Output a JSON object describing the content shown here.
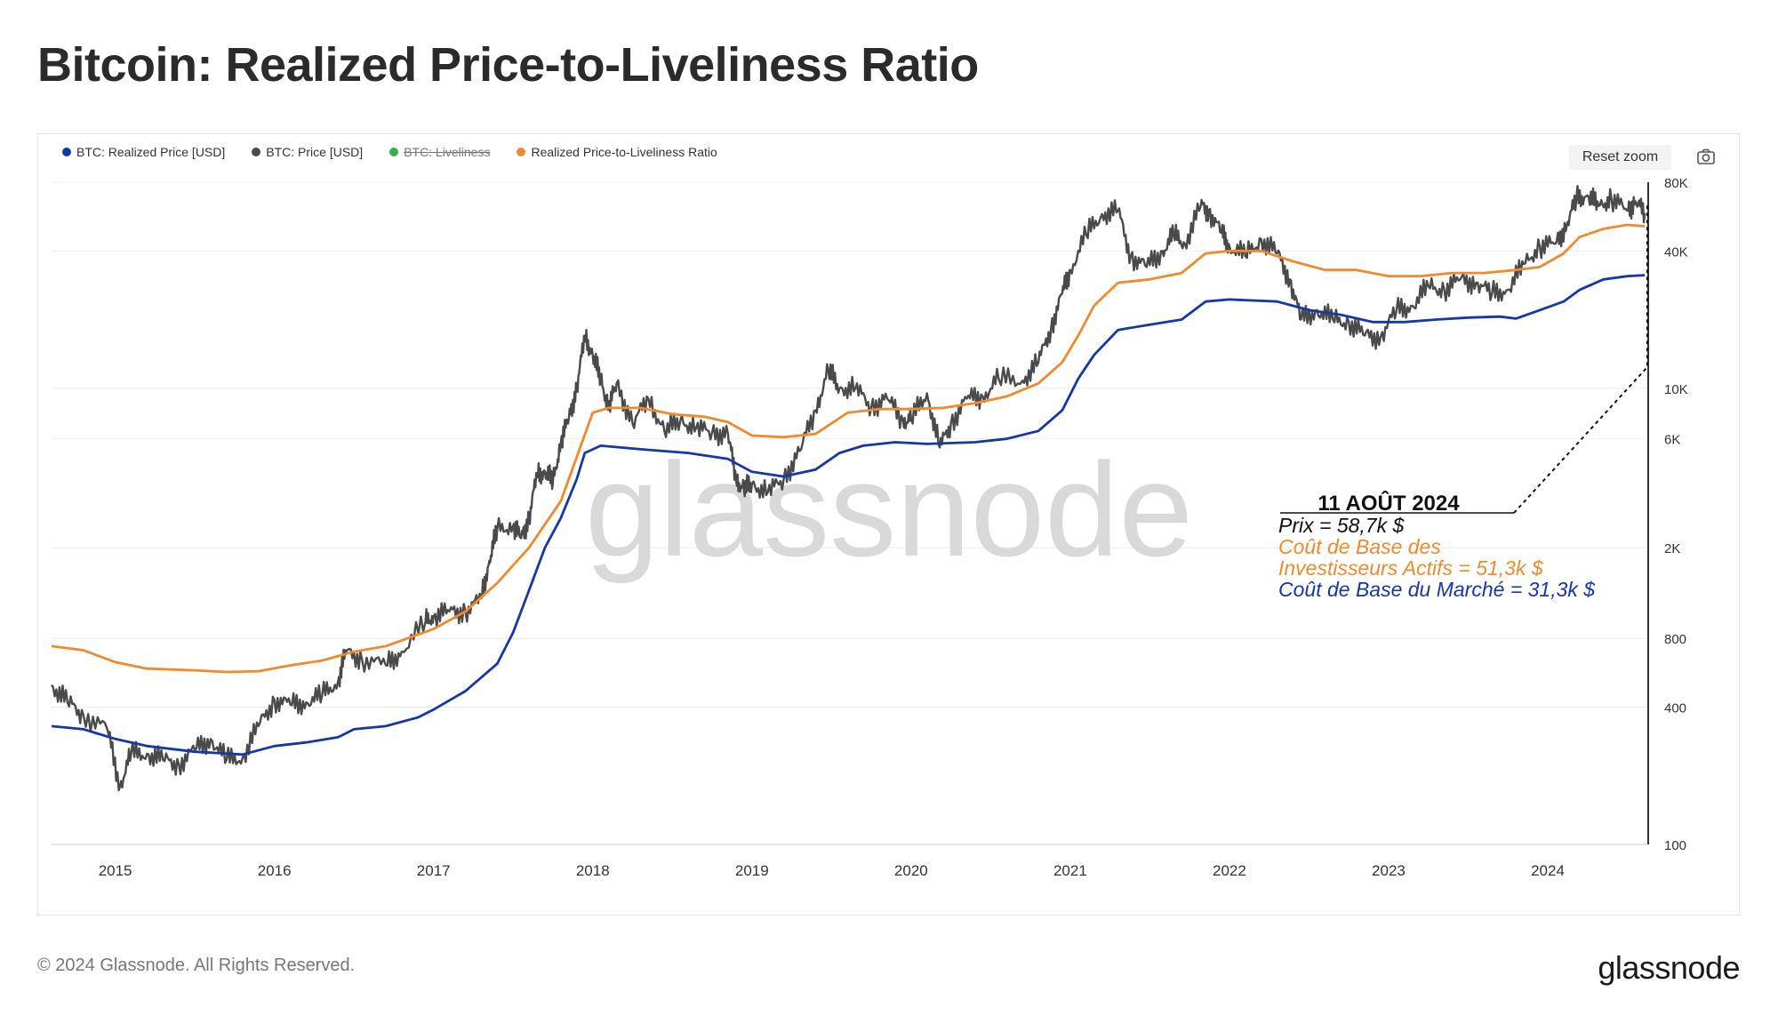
{
  "page": {
    "title": "Bitcoin: Realized Price-to-Liveliness Ratio",
    "copyright": "© 2024 Glassnode. All Rights Reserved.",
    "logo": "glassnode",
    "watermark": "glassnode",
    "reset_zoom_label": "Reset zoom",
    "camera_icon": "camera-icon"
  },
  "legend": [
    {
      "label": "BTC: Realized Price [USD]",
      "color": "#1537a8",
      "enabled": true
    },
    {
      "label": "BTC: Price [USD]",
      "color": "#4a4a4a",
      "enabled": true
    },
    {
      "label": "BTC: Liveliness",
      "color": "#2fb344",
      "enabled": false
    },
    {
      "label": "Realized Price-to-Liveliness Ratio",
      "color": "#f08a2c",
      "enabled": true
    }
  ],
  "annotation": {
    "date": "11 AOÛT 2024",
    "price": "Prix = 58,7k $",
    "active_line1": "Coût de Base des",
    "active_line2": "Investisseurs Actifs = 51,3k $",
    "market": "Coût de Base du Marché = 31,3k  $"
  },
  "chart_data": {
    "type": "line",
    "title": "Bitcoin: Realized Price-to-Liveliness Ratio",
    "yscale": "log",
    "ylim": [
      100,
      80000
    ],
    "xlim": [
      2014.6,
      2024.62
    ],
    "yticks": [
      100,
      400,
      800,
      2000,
      6000,
      10000,
      40000,
      80000
    ],
    "ytick_labels": [
      "100",
      "400",
      "800",
      "2K",
      "6K",
      "10K",
      "40K",
      "80K"
    ],
    "xticks": [
      2015,
      2016,
      2017,
      2018,
      2019,
      2020,
      2021,
      2022,
      2023,
      2024
    ],
    "xtick_labels": [
      "2015",
      "2016",
      "2017",
      "2018",
      "2019",
      "2020",
      "2021",
      "2022",
      "2023",
      "2024"
    ],
    "series": [
      {
        "name": "BTC: Price [USD]",
        "color": "#4a4a4a",
        "points": [
          [
            2014.6,
            500
          ],
          [
            2014.7,
            420
          ],
          [
            2014.8,
            370
          ],
          [
            2014.95,
            320
          ],
          [
            2015.03,
            180
          ],
          [
            2015.1,
            250
          ],
          [
            2015.2,
            250
          ],
          [
            2015.3,
            235
          ],
          [
            2015.4,
            225
          ],
          [
            2015.5,
            260
          ],
          [
            2015.6,
            290
          ],
          [
            2015.7,
            235
          ],
          [
            2015.8,
            240
          ],
          [
            2015.9,
            330
          ],
          [
            2016.0,
            430
          ],
          [
            2016.1,
            410
          ],
          [
            2016.2,
            420
          ],
          [
            2016.3,
            450
          ],
          [
            2016.4,
            520
          ],
          [
            2016.45,
            700
          ],
          [
            2016.55,
            650
          ],
          [
            2016.7,
            610
          ],
          [
            2016.8,
            700
          ],
          [
            2016.95,
            950
          ],
          [
            2017.0,
            1000
          ],
          [
            2017.1,
            1050
          ],
          [
            2017.2,
            1050
          ],
          [
            2017.3,
            1200
          ],
          [
            2017.35,
            1750
          ],
          [
            2017.4,
            2400
          ],
          [
            2017.5,
            2500
          ],
          [
            2017.55,
            2200
          ],
          [
            2017.6,
            2700
          ],
          [
            2017.65,
            4200
          ],
          [
            2017.7,
            4300
          ],
          [
            2017.75,
            3900
          ],
          [
            2017.8,
            5800
          ],
          [
            2017.85,
            7400
          ],
          [
            2017.9,
            10000
          ],
          [
            2017.95,
            17000
          ],
          [
            2018.0,
            14000
          ],
          [
            2018.05,
            11000
          ],
          [
            2018.1,
            8200
          ],
          [
            2018.15,
            10500
          ],
          [
            2018.25,
            7000
          ],
          [
            2018.35,
            9000
          ],
          [
            2018.45,
            6500
          ],
          [
            2018.55,
            7200
          ],
          [
            2018.65,
            6700
          ],
          [
            2018.75,
            6400
          ],
          [
            2018.85,
            6300
          ],
          [
            2018.9,
            4000
          ],
          [
            2018.95,
            3600
          ],
          [
            2019.0,
            3800
          ],
          [
            2019.1,
            3500
          ],
          [
            2019.2,
            4000
          ],
          [
            2019.3,
            5300
          ],
          [
            2019.4,
            8000
          ],
          [
            2019.48,
            12000
          ],
          [
            2019.55,
            10000
          ],
          [
            2019.65,
            10000
          ],
          [
            2019.75,
            8300
          ],
          [
            2019.85,
            9000
          ],
          [
            2019.95,
            7200
          ],
          [
            2020.0,
            7300
          ],
          [
            2020.1,
            9500
          ],
          [
            2020.18,
            5500
          ],
          [
            2020.25,
            7000
          ],
          [
            2020.35,
            9000
          ],
          [
            2020.45,
            9200
          ],
          [
            2020.55,
            11000
          ],
          [
            2020.7,
            10800
          ],
          [
            2020.8,
            13000
          ],
          [
            2020.88,
            18500
          ],
          [
            2020.95,
            26000
          ],
          [
            2021.0,
            33000
          ],
          [
            2021.1,
            47000
          ],
          [
            2021.2,
            58000
          ],
          [
            2021.3,
            60000
          ],
          [
            2021.38,
            38000
          ],
          [
            2021.48,
            34000
          ],
          [
            2021.58,
            40000
          ],
          [
            2021.65,
            47000
          ],
          [
            2021.72,
            43000
          ],
          [
            2021.82,
            63000
          ],
          [
            2021.87,
            60000
          ],
          [
            2021.95,
            48000
          ],
          [
            2022.0,
            42000
          ],
          [
            2022.1,
            38000
          ],
          [
            2022.2,
            45000
          ],
          [
            2022.3,
            39000
          ],
          [
            2022.38,
            30000
          ],
          [
            2022.45,
            20000
          ],
          [
            2022.55,
            22000
          ],
          [
            2022.65,
            20000
          ],
          [
            2022.75,
            19500
          ],
          [
            2022.85,
            17000
          ],
          [
            2022.95,
            16800
          ],
          [
            2023.05,
            22000
          ],
          [
            2023.15,
            23000
          ],
          [
            2023.25,
            28000
          ],
          [
            2023.35,
            27000
          ],
          [
            2023.45,
            30000
          ],
          [
            2023.55,
            29000
          ],
          [
            2023.65,
            26000
          ],
          [
            2023.75,
            27000
          ],
          [
            2023.85,
            35000
          ],
          [
            2023.95,
            42000
          ],
          [
            2024.05,
            43000
          ],
          [
            2024.12,
            52000
          ],
          [
            2024.18,
            68000
          ],
          [
            2024.25,
            70000
          ],
          [
            2024.32,
            63000
          ],
          [
            2024.4,
            68000
          ],
          [
            2024.5,
            60000
          ],
          [
            2024.55,
            66000
          ],
          [
            2024.61,
            58700
          ]
        ]
      },
      {
        "name": "Realized Price-to-Liveliness Ratio",
        "color": "#f08a2c",
        "points": [
          [
            2014.6,
            740
          ],
          [
            2014.8,
            710
          ],
          [
            2015.0,
            630
          ],
          [
            2015.2,
            590
          ],
          [
            2015.5,
            580
          ],
          [
            2015.7,
            570
          ],
          [
            2015.9,
            575
          ],
          [
            2016.1,
            610
          ],
          [
            2016.3,
            640
          ],
          [
            2016.5,
            700
          ],
          [
            2016.7,
            740
          ],
          [
            2016.9,
            830
          ],
          [
            2017.0,
            880
          ],
          [
            2017.2,
            1050
          ],
          [
            2017.4,
            1400
          ],
          [
            2017.6,
            2000
          ],
          [
            2017.8,
            3200
          ],
          [
            2017.9,
            5000
          ],
          [
            2018.0,
            7800
          ],
          [
            2018.1,
            8200
          ],
          [
            2018.3,
            8200
          ],
          [
            2018.5,
            7700
          ],
          [
            2018.7,
            7500
          ],
          [
            2018.85,
            7100
          ],
          [
            2019.0,
            6200
          ],
          [
            2019.2,
            6100
          ],
          [
            2019.4,
            6300
          ],
          [
            2019.6,
            7800
          ],
          [
            2019.8,
            8100
          ],
          [
            2020.0,
            8100
          ],
          [
            2020.2,
            8200
          ],
          [
            2020.4,
            8600
          ],
          [
            2020.6,
            9200
          ],
          [
            2020.8,
            10500
          ],
          [
            2020.95,
            13000
          ],
          [
            2021.05,
            17000
          ],
          [
            2021.15,
            23000
          ],
          [
            2021.3,
            29000
          ],
          [
            2021.5,
            30000
          ],
          [
            2021.7,
            32000
          ],
          [
            2021.85,
            39000
          ],
          [
            2022.0,
            40000
          ],
          [
            2022.2,
            40000
          ],
          [
            2022.4,
            36000
          ],
          [
            2022.6,
            33000
          ],
          [
            2022.8,
            33000
          ],
          [
            2023.0,
            31000
          ],
          [
            2023.2,
            31000
          ],
          [
            2023.4,
            32000
          ],
          [
            2023.6,
            32000
          ],
          [
            2023.8,
            33000
          ],
          [
            2023.95,
            34000
          ],
          [
            2024.1,
            39000
          ],
          [
            2024.2,
            46000
          ],
          [
            2024.35,
            50000
          ],
          [
            2024.5,
            52000
          ],
          [
            2024.61,
            51300
          ]
        ]
      },
      {
        "name": "BTC: Realized Price [USD]",
        "color": "#1537a8",
        "points": [
          [
            2014.6,
            330
          ],
          [
            2014.8,
            320
          ],
          [
            2015.0,
            290
          ],
          [
            2015.2,
            270
          ],
          [
            2015.5,
            255
          ],
          [
            2015.8,
            248
          ],
          [
            2016.0,
            270
          ],
          [
            2016.2,
            280
          ],
          [
            2016.4,
            295
          ],
          [
            2016.5,
            320
          ],
          [
            2016.7,
            330
          ],
          [
            2016.9,
            360
          ],
          [
            2017.0,
            390
          ],
          [
            2017.2,
            470
          ],
          [
            2017.4,
            620
          ],
          [
            2017.5,
            850
          ],
          [
            2017.6,
            1300
          ],
          [
            2017.7,
            2000
          ],
          [
            2017.8,
            2700
          ],
          [
            2017.9,
            4000
          ],
          [
            2017.95,
            5200
          ],
          [
            2018.05,
            5600
          ],
          [
            2018.3,
            5400
          ],
          [
            2018.6,
            5200
          ],
          [
            2018.85,
            4900
          ],
          [
            2019.0,
            4300
          ],
          [
            2019.2,
            4100
          ],
          [
            2019.4,
            4400
          ],
          [
            2019.55,
            5200
          ],
          [
            2019.7,
            5600
          ],
          [
            2019.9,
            5800
          ],
          [
            2020.1,
            5700
          ],
          [
            2020.4,
            5800
          ],
          [
            2020.6,
            6000
          ],
          [
            2020.8,
            6500
          ],
          [
            2020.95,
            8000
          ],
          [
            2021.05,
            11000
          ],
          [
            2021.15,
            14000
          ],
          [
            2021.3,
            18000
          ],
          [
            2021.5,
            19000
          ],
          [
            2021.7,
            20000
          ],
          [
            2021.85,
            24000
          ],
          [
            2022.0,
            24500
          ],
          [
            2022.3,
            24000
          ],
          [
            2022.5,
            22000
          ],
          [
            2022.7,
            21000
          ],
          [
            2022.9,
            19500
          ],
          [
            2023.1,
            19500
          ],
          [
            2023.3,
            20000
          ],
          [
            2023.5,
            20400
          ],
          [
            2023.7,
            20600
          ],
          [
            2023.8,
            20200
          ],
          [
            2023.95,
            22000
          ],
          [
            2024.1,
            24000
          ],
          [
            2024.2,
            27000
          ],
          [
            2024.35,
            30000
          ],
          [
            2024.5,
            31000
          ],
          [
            2024.61,
            31300
          ]
        ]
      }
    ]
  }
}
